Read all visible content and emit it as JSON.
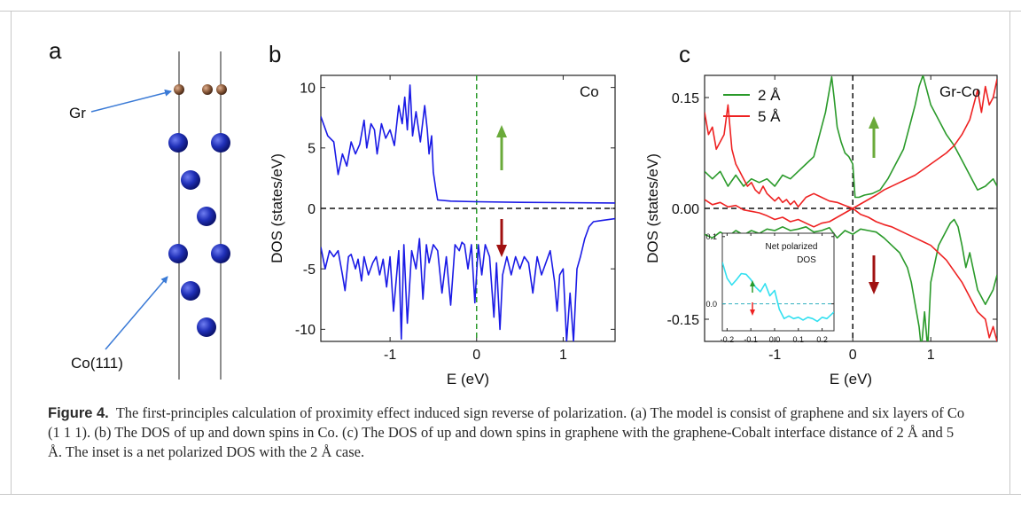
{
  "figure": {
    "panel_a": {
      "letter": "a",
      "label_gr": "Gr",
      "label_co": "Co(111)"
    },
    "panel_b": {
      "letter": "b",
      "legend": "Co"
    },
    "panel_c": {
      "letter": "c",
      "legend": "Gr-Co",
      "inset": {
        "title_line1": "Net polarized",
        "title_line2": "DOS"
      }
    },
    "caption": {
      "label": "Figure 4.",
      "text": "The first-principles calculation of proximity effect induced sign reverse of polarization. (a) The model is consist of graphene and six layers of Co (1 1 1). (b) The DOS of up and down spins in Co. (c) The DOS of up and down spins in graphene with the graphene-Cobalt interface distance of 2 Å and 5 Å. The inset is a net polarized DOS with the 2 Å case."
    }
  },
  "colors": {
    "co_dos": "#1a1ae6",
    "gr_2A": "#2a9a2a",
    "gr_5A": "#ee2222",
    "inset_line": "#33e0f0",
    "arrow_up": "#6aaa3a",
    "arrow_down": "#a01010",
    "atom_co": "#1e2aa8",
    "atom_gr": "#8a5a3a",
    "pointer": "#3a7ad6"
  },
  "chart_data": [
    {
      "type": "line",
      "title": "",
      "xlabel": "E (eV)",
      "ylabel": "DOS (states/eV)",
      "xlim": [
        -1.8,
        1.6
      ],
      "ylim": [
        -11,
        11
      ],
      "x_ticks": [
        -1,
        0,
        1
      ],
      "y_ticks": [
        10,
        5,
        0,
        -5,
        -10
      ],
      "legend_text": "Co",
      "series": [
        {
          "name": "spin up",
          "x": [
            -1.8,
            -1.72,
            -1.65,
            -1.6,
            -1.55,
            -1.5,
            -1.45,
            -1.4,
            -1.35,
            -1.3,
            -1.27,
            -1.22,
            -1.18,
            -1.15,
            -1.1,
            -1.05,
            -1.0,
            -0.95,
            -0.9,
            -0.86,
            -0.83,
            -0.8,
            -0.77,
            -0.74,
            -0.7,
            -0.65,
            -0.6,
            -0.57,
            -0.55,
            -0.52,
            -0.5,
            -0.47,
            -0.45,
            -0.3,
            0.0,
            0.5,
            1.0,
            1.6
          ],
          "y": [
            7.6,
            6.0,
            5.5,
            2.8,
            4.5,
            3.5,
            5.5,
            4.5,
            5.3,
            7.3,
            5.0,
            7.0,
            6.5,
            4.5,
            7.0,
            5.8,
            6.5,
            5.2,
            8.5,
            7.0,
            9.2,
            6.5,
            10.2,
            6.0,
            8.0,
            5.5,
            8.5,
            6.5,
            4.5,
            6.0,
            3.0,
            1.5,
            0.7,
            0.6,
            0.55,
            0.5,
            0.48,
            0.45
          ]
        },
        {
          "name": "spin down",
          "x": [
            -1.8,
            -1.75,
            -1.7,
            -1.65,
            -1.6,
            -1.55,
            -1.52,
            -1.48,
            -1.45,
            -1.4,
            -1.37,
            -1.33,
            -1.3,
            -1.25,
            -1.2,
            -1.16,
            -1.12,
            -1.08,
            -1.04,
            -1.0,
            -0.96,
            -0.9,
            -0.87,
            -0.84,
            -0.8,
            -0.75,
            -0.7,
            -0.66,
            -0.62,
            -0.58,
            -0.55,
            -0.5,
            -0.45,
            -0.4,
            -0.35,
            -0.3,
            -0.25,
            -0.2,
            -0.17,
            -0.14,
            -0.1,
            -0.06,
            -0.02,
            0.02,
            0.06,
            0.1,
            0.15,
            0.2,
            0.23,
            0.27,
            0.3,
            0.35,
            0.4,
            0.45,
            0.5,
            0.55,
            0.6,
            0.65,
            0.7,
            0.75,
            0.8,
            0.85,
            0.9,
            0.93,
            0.96,
            1.0,
            1.04,
            1.08,
            1.12,
            1.16,
            1.2,
            1.25,
            1.3,
            1.35,
            1.45,
            1.6
          ],
          "y": [
            -3.2,
            -5.0,
            -3.5,
            -4.0,
            -3.5,
            -5.5,
            -6.8,
            -4.0,
            -3.8,
            -5.0,
            -4.2,
            -6.0,
            -4.0,
            -5.5,
            -4.5,
            -4.0,
            -5.5,
            -4.2,
            -6.5,
            -4.0,
            -8.5,
            -3.5,
            -10.8,
            -3.0,
            -9.5,
            -3.5,
            -5.0,
            -2.5,
            -7.5,
            -3.0,
            -4.5,
            -3.0,
            -3.5,
            -7.0,
            -4.0,
            -8.0,
            -3.0,
            -3.5,
            -2.8,
            -3.0,
            -5.0,
            -3.0,
            -7.8,
            -3.0,
            -5.5,
            -3.0,
            -4.0,
            -9.0,
            -4.5,
            -10.0,
            -5.5,
            -4.0,
            -5.5,
            -4.0,
            -5.0,
            -4.0,
            -4.5,
            -7.0,
            -4.0,
            -5.5,
            -4.5,
            -3.5,
            -6.0,
            -8.5,
            -5.5,
            -5.0,
            -11.0,
            -7.0,
            -11.0,
            -5.0,
            -4.0,
            -2.5,
            -1.5,
            -1.1,
            -1.0,
            -0.85
          ]
        }
      ]
    },
    {
      "type": "line",
      "title": "",
      "xlabel": "E (eV)",
      "ylabel": "DOS (states/eV)",
      "xlim": [
        -1.9,
        1.85
      ],
      "ylim": [
        -0.18,
        0.18
      ],
      "x_ticks": [
        -1,
        0,
        1
      ],
      "y_ticks": [
        0.15,
        0.0,
        -0.15
      ],
      "y_tick_labels": [
        "0.15",
        "0.00",
        "-0.15"
      ],
      "legend_text": "Gr-Co",
      "series": [
        {
          "name": "2 Å",
          "x": [
            -1.9,
            -1.8,
            -1.7,
            -1.6,
            -1.5,
            -1.4,
            -1.3,
            -1.2,
            -1.1,
            -1.0,
            -0.9,
            -0.8,
            -0.7,
            -0.6,
            -0.5,
            -0.45,
            -0.4,
            -0.35,
            -0.3,
            -0.27,
            -0.24,
            -0.2,
            -0.15,
            -0.1,
            -0.05,
            0.0,
            0.03,
            0.08,
            0.15,
            0.25,
            0.35,
            0.45,
            0.55,
            0.65,
            0.7,
            0.75,
            0.8,
            0.85,
            0.9,
            1.0,
            1.1,
            1.2,
            1.3,
            1.4,
            1.5,
            1.6,
            1.7,
            1.8,
            1.85
          ],
          "y": [
            0.05,
            0.04,
            0.05,
            0.03,
            0.045,
            0.03,
            0.04,
            0.035,
            0.04,
            0.03,
            0.045,
            0.04,
            0.05,
            0.06,
            0.07,
            0.09,
            0.11,
            0.13,
            0.16,
            0.178,
            0.15,
            0.11,
            0.09,
            0.075,
            0.07,
            0.06,
            0.015,
            0.015,
            0.018,
            0.02,
            0.025,
            0.04,
            0.06,
            0.08,
            0.1,
            0.12,
            0.14,
            0.165,
            0.18,
            0.14,
            0.12,
            0.1,
            0.085,
            0.065,
            0.045,
            0.025,
            0.03,
            0.04,
            0.03
          ]
        },
        {
          "name": "2 Å (down)",
          "x": [
            -1.9,
            -1.8,
            -1.7,
            -1.6,
            -1.5,
            -1.4,
            -1.3,
            -1.2,
            -1.1,
            -1.0,
            -0.9,
            -0.8,
            -0.7,
            -0.6,
            -0.5,
            -0.4,
            -0.3,
            -0.2,
            -0.1,
            0.0,
            0.1,
            0.2,
            0.3,
            0.4,
            0.5,
            0.6,
            0.7,
            0.75,
            0.8,
            0.85,
            0.88,
            0.92,
            0.96,
            1.0,
            1.1,
            1.2,
            1.25,
            1.3,
            1.35,
            1.4,
            1.45,
            1.5,
            1.6,
            1.7,
            1.8,
            1.85
          ],
          "y": [
            -0.035,
            -0.04,
            -0.032,
            -0.038,
            -0.03,
            -0.036,
            -0.03,
            -0.034,
            -0.028,
            -0.03,
            -0.025,
            -0.03,
            -0.028,
            -0.025,
            -0.032,
            -0.03,
            -0.026,
            -0.04,
            -0.03,
            -0.035,
            -0.028,
            -0.03,
            -0.032,
            -0.04,
            -0.05,
            -0.06,
            -0.08,
            -0.1,
            -0.13,
            -0.16,
            -0.19,
            -0.14,
            -0.19,
            -0.1,
            -0.05,
            -0.03,
            -0.02,
            -0.015,
            -0.025,
            -0.05,
            -0.08,
            -0.06,
            -0.11,
            -0.13,
            -0.11,
            -0.09
          ]
        },
        {
          "name": "5 Å",
          "x": [
            -1.9,
            -1.85,
            -1.8,
            -1.75,
            -1.7,
            -1.65,
            -1.6,
            -1.55,
            -1.5,
            -1.45,
            -1.4,
            -1.35,
            -1.3,
            -1.25,
            -1.2,
            -1.15,
            -1.1,
            -1.05,
            -1.0,
            -0.95,
            -0.9,
            -0.85,
            -0.8,
            -0.75,
            -0.7,
            -0.6,
            -0.5,
            -0.4,
            -0.3,
            -0.2,
            -0.1,
            0.0,
            0.1,
            0.2,
            0.3,
            0.4,
            0.6,
            0.8,
            1.0,
            1.2,
            1.3,
            1.4,
            1.5,
            1.55,
            1.6,
            1.65,
            1.7,
            1.75,
            1.8,
            1.85
          ],
          "y": [
            0.13,
            0.1,
            0.11,
            0.08,
            0.09,
            0.1,
            0.14,
            0.08,
            0.06,
            0.05,
            0.04,
            0.03,
            0.035,
            0.025,
            0.02,
            0.03,
            0.02,
            0.015,
            0.01,
            0.015,
            0.008,
            0.012,
            0.005,
            0.01,
            0.002,
            0.015,
            0.02,
            0.015,
            0.01,
            0.008,
            0.004,
            0.0,
            0.006,
            0.012,
            0.018,
            0.025,
            0.035,
            0.045,
            0.06,
            0.075,
            0.085,
            0.1,
            0.12,
            0.14,
            0.16,
            0.13,
            0.165,
            0.14,
            0.15,
            0.175
          ]
        },
        {
          "name": "5 Å (down)",
          "x": [
            -1.9,
            -1.8,
            -1.7,
            -1.6,
            -1.5,
            -1.4,
            -1.3,
            -1.2,
            -1.1,
            -1.0,
            -0.9,
            -0.8,
            -0.7,
            -0.6,
            -0.5,
            -0.4,
            -0.3,
            -0.2,
            -0.1,
            0.0,
            0.1,
            0.2,
            0.3,
            0.4,
            0.5,
            0.6,
            0.7,
            0.8,
            0.9,
            1.0,
            1.1,
            1.2,
            1.3,
            1.4,
            1.5,
            1.6,
            1.7,
            1.75,
            1.8,
            1.85
          ],
          "y": [
            0.012,
            0.005,
            0.008,
            0.002,
            0.004,
            -0.002,
            -0.004,
            -0.006,
            -0.01,
            -0.015,
            -0.012,
            -0.018,
            -0.015,
            -0.02,
            -0.025,
            -0.02,
            -0.018,
            -0.012,
            -0.006,
            0.0,
            -0.008,
            -0.012,
            -0.018,
            -0.022,
            -0.025,
            -0.03,
            -0.035,
            -0.04,
            -0.045,
            -0.05,
            -0.06,
            -0.07,
            -0.085,
            -0.1,
            -0.12,
            -0.14,
            -0.15,
            -0.175,
            -0.16,
            -0.18
          ]
        }
      ]
    },
    {
      "type": "line",
      "title": "Net polarized DOS",
      "xlabel": "",
      "ylabel": "",
      "xlim": [
        -0.22,
        0.25
      ],
      "ylim": [
        -0.04,
        0.105
      ],
      "x_ticks": [
        -0.2,
        -0.1,
        0.0,
        0.1,
        0.2
      ],
      "x_tick_labels": [
        "-0.2",
        "-0.1",
        "0.0",
        "0.1",
        "0.2"
      ],
      "y_ticks": [
        0.1,
        0.0
      ],
      "y_tick_labels": [
        "0.1",
        "0.0"
      ],
      "series": [
        {
          "name": "2 Å net",
          "x": [
            -0.22,
            -0.2,
            -0.18,
            -0.16,
            -0.14,
            -0.12,
            -0.1,
            -0.08,
            -0.06,
            -0.04,
            -0.02,
            0.0,
            0.02,
            0.04,
            0.06,
            0.08,
            0.1,
            0.12,
            0.14,
            0.16,
            0.18,
            0.2,
            0.22,
            0.25
          ],
          "y": [
            0.062,
            0.038,
            0.028,
            0.036,
            0.045,
            0.044,
            0.036,
            0.025,
            0.018,
            0.03,
            0.012,
            0.02,
            -0.008,
            -0.022,
            -0.018,
            -0.022,
            -0.02,
            -0.024,
            -0.02,
            -0.022,
            -0.026,
            -0.02,
            -0.022,
            -0.012
          ]
        }
      ]
    }
  ]
}
